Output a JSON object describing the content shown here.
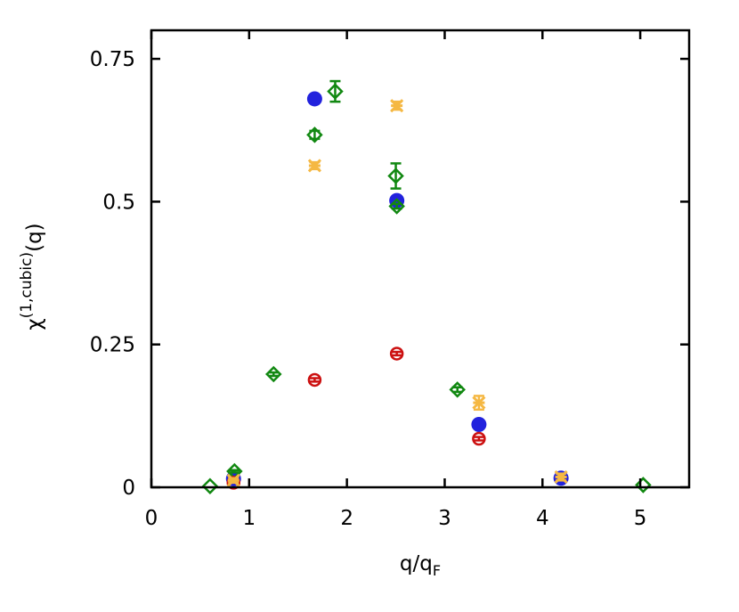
{
  "chart_data": {
    "type": "scatter",
    "title": "",
    "xlabel": {
      "base": "q/q",
      "sub": "F"
    },
    "ylabel": {
      "base": "χ",
      "sup": "(1,cubic)",
      "tail": "(q)"
    },
    "xlim": [
      0,
      5.5
    ],
    "ylim": [
      0,
      0.8
    ],
    "x_ticks": [
      0,
      1,
      2,
      3,
      4,
      5
    ],
    "x_tick_labels": [
      "0",
      "1",
      "2",
      "3",
      "4",
      "5"
    ],
    "y_ticks": [
      0,
      0.25,
      0.5,
      0.75
    ],
    "y_tick_labels": [
      "0",
      "0.25",
      "0.5",
      "0.75"
    ],
    "grid": false,
    "legend": "none",
    "series": [
      {
        "marker": "filled-circle",
        "color": "#2222dd",
        "points": [
          {
            "x": 0.84,
            "y": 0.015,
            "err": 0
          },
          {
            "x": 1.67,
            "y": 0.68,
            "err": 0
          },
          {
            "x": 2.51,
            "y": 0.502,
            "err": 0
          },
          {
            "x": 3.35,
            "y": 0.11,
            "err": 0
          },
          {
            "x": 4.19,
            "y": 0.016,
            "err": 0
          }
        ]
      },
      {
        "marker": "open-diamond",
        "color": "#118811",
        "points": [
          {
            "x": 0.6,
            "y": 0.002,
            "err": 0
          },
          {
            "x": 0.85,
            "y": 0.028,
            "err": 0.002
          },
          {
            "x": 1.25,
            "y": 0.198,
            "err": 0.003
          },
          {
            "x": 1.67,
            "y": 0.617,
            "err": 0.007
          },
          {
            "x": 1.88,
            "y": 0.693,
            "err": 0.018
          },
          {
            "x": 2.5,
            "y": 0.545,
            "err": 0.022
          },
          {
            "x": 2.51,
            "y": 0.492,
            "err": 0.004
          },
          {
            "x": 3.13,
            "y": 0.171,
            "err": 0.004
          },
          {
            "x": 5.03,
            "y": 0.004,
            "err": 0
          }
        ]
      },
      {
        "marker": "open-circle",
        "color": "#cc1111",
        "points": [
          {
            "x": 0.84,
            "y": 0.008,
            "err": 0
          },
          {
            "x": 1.67,
            "y": 0.188,
            "err": 0.003
          },
          {
            "x": 2.51,
            "y": 0.234,
            "err": 0.003
          },
          {
            "x": 3.35,
            "y": 0.085,
            "err": 0.003
          }
        ]
      },
      {
        "marker": "star",
        "color": "#f5b843",
        "points": [
          {
            "x": 0.84,
            "y": 0.012,
            "err": 0.004
          },
          {
            "x": 1.67,
            "y": 0.563,
            "err": 0.006
          },
          {
            "x": 2.51,
            "y": 0.668,
            "err": 0.007
          },
          {
            "x": 3.35,
            "y": 0.148,
            "err": 0.012
          },
          {
            "x": 4.19,
            "y": 0.018,
            "err": 0.006
          }
        ]
      }
    ]
  }
}
